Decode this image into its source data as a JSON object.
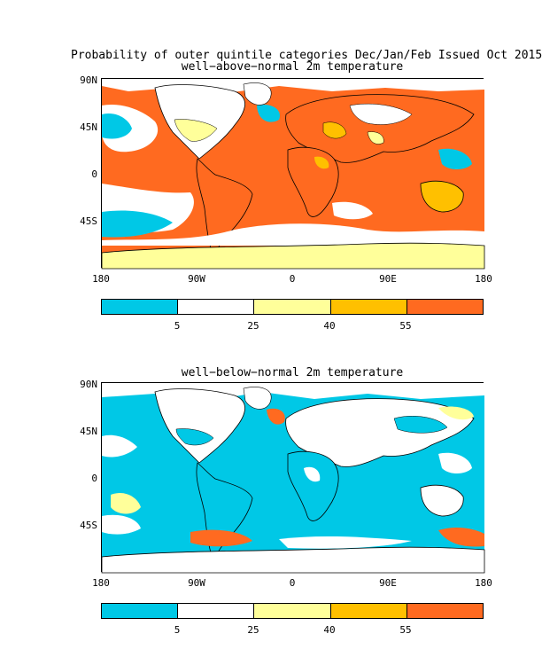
{
  "header": {
    "title": "Probability of outer quintile categories Dec/Jan/Feb Issued Oct 2015",
    "colors": {
      "cyan": "#00c8e6",
      "white": "#ffffff",
      "pale_yellow": "#ffff9a",
      "gold": "#ffc000",
      "orange": "#ff6a20"
    }
  },
  "panels": [
    {
      "subtitle": "well−above−normal 2m temperature",
      "lat_labels": [
        "90N",
        "45N",
        "0",
        "45S"
      ],
      "lon_labels": [
        "180",
        "90W",
        "0",
        "90E",
        "180"
      ],
      "colorbar_ticks": [
        "5",
        "25",
        "40",
        "55"
      ],
      "dominant_category": "orange"
    },
    {
      "subtitle": "well−below−normal 2m temperature",
      "lat_labels": [
        "90N",
        "45N",
        "0",
        "45S"
      ],
      "lon_labels": [
        "180",
        "90W",
        "0",
        "90E",
        "180"
      ],
      "colorbar_ticks": [
        "5",
        "25",
        "40",
        "55"
      ],
      "dominant_category": "cyan"
    }
  ]
}
